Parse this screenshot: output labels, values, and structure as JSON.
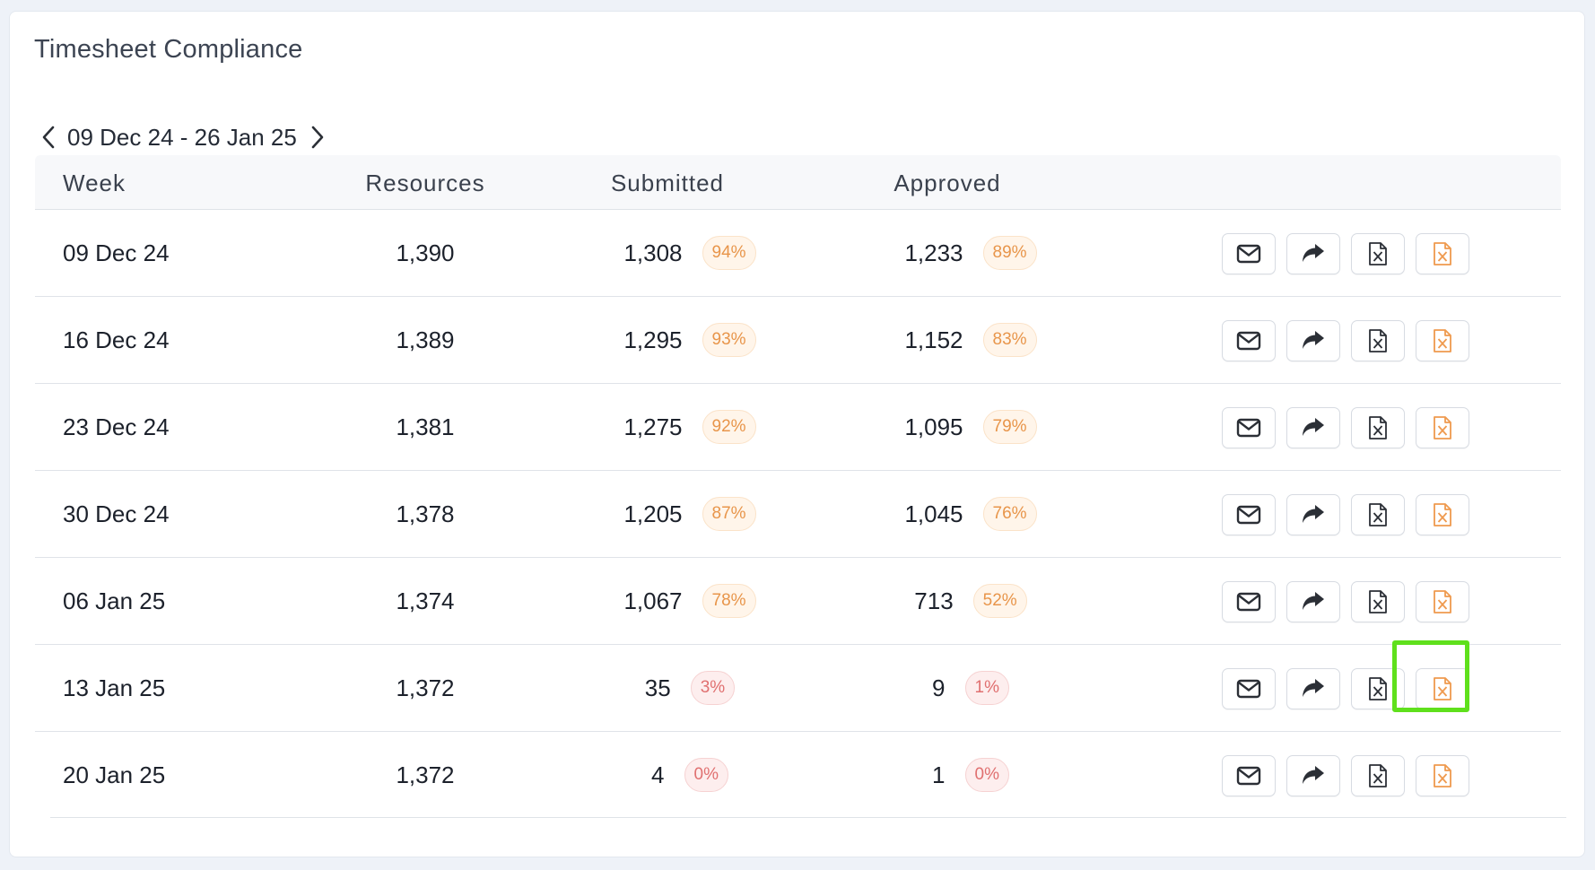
{
  "card": {
    "title": "Timesheet Compliance"
  },
  "range": {
    "label": "09 Dec 24 - 26 Jan 25"
  },
  "columns": {
    "week": "Week",
    "resources": "Resources",
    "submitted": "Submitted",
    "approved": "Approved"
  },
  "rows": [
    {
      "week": "09 Dec 24",
      "resources": "1,390",
      "submitted": "1,308",
      "submitted_pct": "94%",
      "submitted_status": "warn",
      "approved": "1,233",
      "approved_pct": "89%",
      "approved_status": "warn"
    },
    {
      "week": "16 Dec 24",
      "resources": "1,389",
      "submitted": "1,295",
      "submitted_pct": "93%",
      "submitted_status": "warn",
      "approved": "1,152",
      "approved_pct": "83%",
      "approved_status": "warn"
    },
    {
      "week": "23 Dec 24",
      "resources": "1,381",
      "submitted": "1,275",
      "submitted_pct": "92%",
      "submitted_status": "warn",
      "approved": "1,095",
      "approved_pct": "79%",
      "approved_status": "warn"
    },
    {
      "week": "30 Dec 24",
      "resources": "1,378",
      "submitted": "1,205",
      "submitted_pct": "87%",
      "submitted_status": "warn",
      "approved": "1,045",
      "approved_pct": "76%",
      "approved_status": "warn"
    },
    {
      "week": "06 Jan 25",
      "resources": "1,374",
      "submitted": "1,067",
      "submitted_pct": "78%",
      "submitted_status": "warn",
      "approved": "713",
      "approved_pct": "52%",
      "approved_status": "warn"
    },
    {
      "week": "13 Jan 25",
      "resources": "1,372",
      "submitted": "35",
      "submitted_pct": "3%",
      "submitted_status": "bad",
      "approved": "9",
      "approved_pct": "1%",
      "approved_status": "bad"
    },
    {
      "week": "20 Jan 25",
      "resources": "1,372",
      "submitted": "4",
      "submitted_pct": "0%",
      "submitted_status": "bad",
      "approved": "1",
      "approved_pct": "0%",
      "approved_status": "bad"
    }
  ],
  "row_actions": [
    "mail-icon",
    "share-forward-icon",
    "excel-export-icon",
    "excel-export-highlight-icon"
  ],
  "highlighted_action": {
    "row": "13 Jan 25",
    "action": "excel-export-highlight-icon"
  },
  "colors": {
    "warn_text": "#e8954a",
    "bad_text": "#e07070",
    "icon_dark": "#2b2f36",
    "icon_orange": "#ef9a4e",
    "highlight": "#5fe01c"
  }
}
